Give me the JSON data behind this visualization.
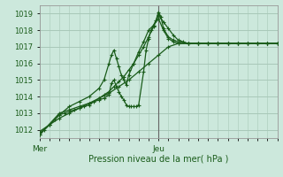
{
  "title": "",
  "xlabel": "Pression niveau de la mer( hPa )",
  "ylabel": "",
  "bg_color": "#cce8dc",
  "grid_color": "#a8c8b8",
  "line_color": "#1a5c1a",
  "axis_color": "#888888",
  "tick_label_color": "#1a5c1a",
  "xlabel_color": "#1a5c1a",
  "xlim": [
    0,
    48
  ],
  "ylim": [
    1011.5,
    1019.5
  ],
  "yticks": [
    1012,
    1013,
    1014,
    1015,
    1016,
    1017,
    1018,
    1019
  ],
  "xtick_positions": [
    0,
    24
  ],
  "xtick_labels": [
    "Mer",
    "Jeu"
  ],
  "vline_x": 24,
  "series": [
    [
      0,
      1011.7,
      1,
      1012.0,
      2,
      1012.3,
      3,
      1012.6,
      4,
      1012.9,
      5,
      1013.0,
      6,
      1013.1,
      7,
      1013.2,
      8,
      1013.3,
      9,
      1013.4,
      10,
      1013.5,
      11,
      1013.7,
      12,
      1013.9,
      13,
      1014.1,
      14,
      1014.3,
      15,
      1014.6,
      16,
      1014.9,
      17,
      1015.2,
      18,
      1015.6,
      19,
      1016.0,
      20,
      1016.5,
      21,
      1017.0,
      22,
      1017.6,
      23,
      1018.2,
      24,
      1018.9,
      25,
      1018.5,
      26,
      1018.1,
      27,
      1017.7,
      28,
      1017.4,
      29,
      1017.3,
      30,
      1017.2,
      32,
      1017.2,
      34,
      1017.2,
      36,
      1017.2,
      38,
      1017.2,
      40,
      1017.2,
      42,
      1017.2,
      44,
      1017.2,
      46,
      1017.2,
      48,
      1017.2
    ],
    [
      0,
      1011.9,
      2,
      1012.3,
      4,
      1012.7,
      6,
      1013.0,
      8,
      1013.3,
      10,
      1013.6,
      12,
      1013.9,
      14,
      1014.2,
      16,
      1014.6,
      18,
      1015.0,
      20,
      1015.5,
      22,
      1016.0,
      24,
      1016.5,
      26,
      1017.0,
      28,
      1017.2,
      30,
      1017.2,
      32,
      1017.2,
      34,
      1017.2,
      36,
      1017.2,
      38,
      1017.2,
      40,
      1017.2,
      42,
      1017.2,
      44,
      1017.2,
      46,
      1017.2,
      48,
      1017.2
    ],
    [
      0,
      1011.7,
      4,
      1013.0,
      6,
      1013.2,
      8,
      1013.4,
      10,
      1013.6,
      12,
      1013.8,
      13,
      1013.9,
      14,
      1014.1,
      14.5,
      1014.8,
      15,
      1015.0,
      15.5,
      1014.6,
      16,
      1014.3,
      16.5,
      1014.0,
      17,
      1013.8,
      17.5,
      1013.5,
      18,
      1013.4,
      18.5,
      1013.4,
      19,
      1013.4,
      19.5,
      1013.4,
      20,
      1013.5,
      21,
      1015.5,
      21.5,
      1016.8,
      22,
      1017.5,
      22.5,
      1018.0,
      23,
      1018.3,
      23.5,
      1018.6,
      24,
      1019.1,
      24.5,
      1018.8,
      25,
      1018.1,
      26,
      1017.6,
      27,
      1017.4,
      28,
      1017.3,
      30,
      1017.2,
      32,
      1017.2,
      34,
      1017.2,
      36,
      1017.2,
      38,
      1017.2,
      40,
      1017.2,
      42,
      1017.2,
      44,
      1017.2,
      46,
      1017.2,
      48,
      1017.2
    ],
    [
      0,
      1011.8,
      2,
      1012.3,
      4,
      1012.9,
      6,
      1013.4,
      8,
      1013.7,
      10,
      1014.0,
      12,
      1014.5,
      13,
      1015.0,
      14,
      1016.0,
      14.5,
      1016.5,
      15,
      1016.8,
      15.5,
      1016.3,
      16,
      1015.8,
      16.5,
      1015.3,
      17,
      1015.0,
      17.5,
      1014.7,
      18,
      1015.3,
      19,
      1016.0,
      20,
      1016.7,
      21,
      1017.3,
      22,
      1018.0,
      23,
      1018.3,
      24,
      1018.7,
      25,
      1018.0,
      26,
      1017.5,
      27,
      1017.3,
      28,
      1017.2,
      30,
      1017.2,
      32,
      1017.2,
      34,
      1017.2,
      36,
      1017.2,
      38,
      1017.2,
      40,
      1017.2,
      42,
      1017.2,
      44,
      1017.2,
      46,
      1017.2,
      48,
      1017.2
    ]
  ]
}
